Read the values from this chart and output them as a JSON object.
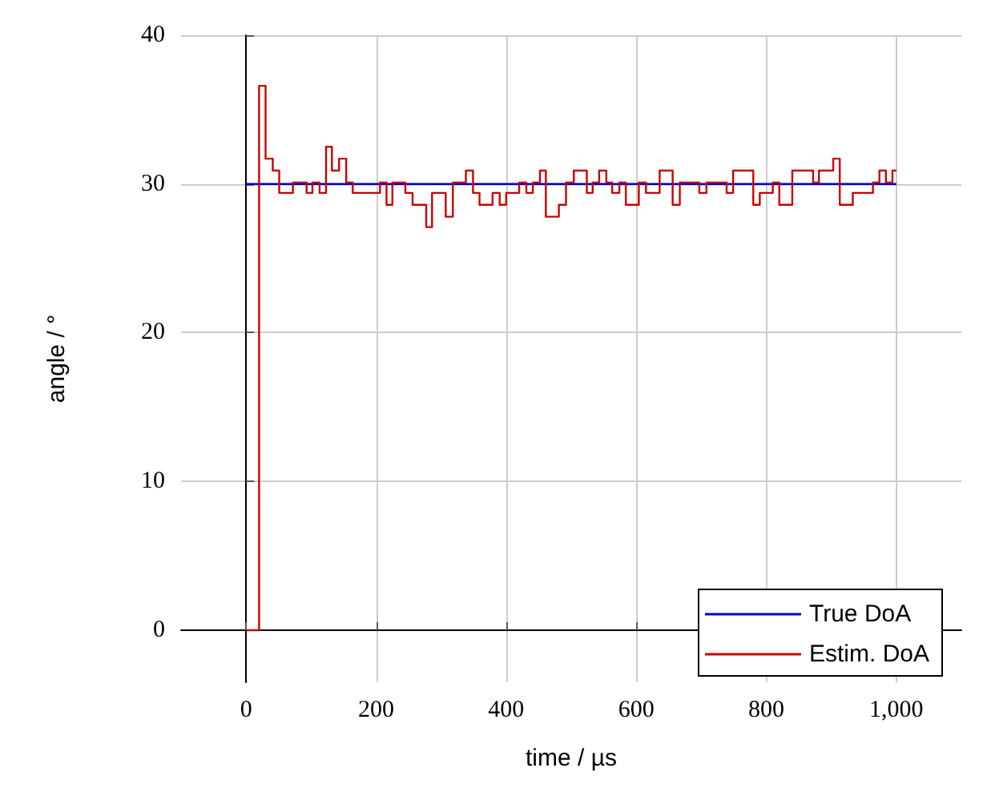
{
  "chart_data": {
    "type": "step",
    "xlabel": "time / µs",
    "ylabel": "angle / °",
    "xlim": [
      -100,
      1100
    ],
    "ylim": [
      -3.5,
      40
    ],
    "xticks": [
      0,
      200,
      400,
      600,
      800,
      {
        "value": 1000,
        "label": "1,000"
      }
    ],
    "yticks": [
      0,
      10,
      20,
      30,
      40
    ],
    "grid": true,
    "legend": "bottom right",
    "marker": "none",
    "line_style": "solid",
    "series": [
      {
        "name": "True DoA",
        "color": "#0000cc",
        "x": [
          0,
          1000
        ],
        "values": [
          30,
          30
        ]
      },
      {
        "name": "Estim. DoA",
        "color": "#cc0000",
        "x": [
          0,
          20,
          30,
          41,
          51,
          72,
          93,
          102,
          113,
          123,
          132,
          143,
          154,
          164,
          206,
          216,
          225,
          245,
          256,
          277,
          286,
          307,
          318,
          338,
          349,
          359,
          379,
          390,
          400,
          420,
          431,
          441,
          452,
          461,
          481,
          492,
          504,
          524,
          533,
          543,
          554,
          563,
          574,
          584,
          604,
          615,
          636,
          656,
          667,
          697,
          708,
          739,
          749,
          780,
          790,
          810,
          820,
          840,
          872,
          881,
          903,
          913,
          933,
          964,
          974,
          984,
          994,
          1000
        ],
        "values": [
          0,
          36.6,
          31.7,
          30.9,
          29.4,
          30.1,
          29.4,
          30.1,
          29.4,
          32.5,
          30.9,
          31.7,
          30.1,
          29.4,
          30.1,
          28.6,
          30.1,
          29.4,
          28.6,
          27.1,
          29.4,
          27.8,
          30.1,
          30.9,
          29.4,
          28.6,
          29.4,
          28.6,
          29.4,
          30.1,
          29.4,
          30.1,
          30.9,
          27.8,
          28.6,
          30.1,
          30.9,
          29.4,
          30.1,
          30.9,
          30.1,
          29.4,
          30.1,
          28.6,
          30.1,
          29.4,
          30.9,
          28.6,
          30.1,
          29.4,
          30.1,
          29.4,
          30.9,
          28.6,
          29.4,
          30.1,
          28.6,
          30.9,
          30.1,
          30.9,
          31.7,
          28.6,
          29.4,
          30.1,
          30.9,
          30.1,
          30.9,
          30.9
        ]
      }
    ]
  }
}
